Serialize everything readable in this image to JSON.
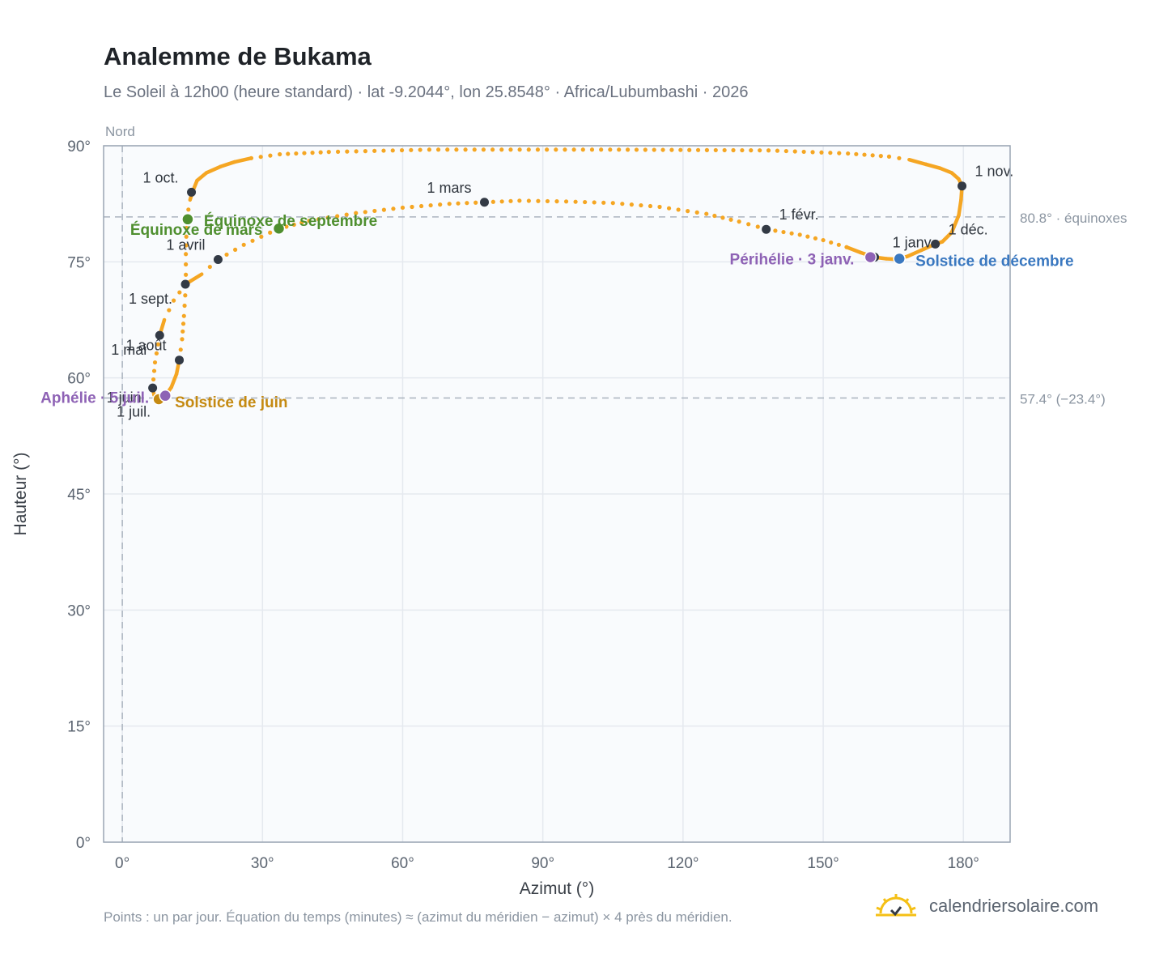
{
  "header": {
    "title": "Analemme de Bukama",
    "subtitle": "Le Soleil à 12h00 (heure standard) · lat -9.2044°, lon 25.8548° · Africa/Lubumbashi · 2026"
  },
  "footer": {
    "note": "Points : un par jour. Équation du temps (minutes) ≈ (azimut du méridien − azimut) × 4 près du méridien.",
    "brand": "calendriersolaire.com"
  },
  "colors": {
    "curve": "#f5a623",
    "month_marker": "#333a45",
    "equinox": "#4f8f2f",
    "june_solstice": "#c58a12",
    "december_solstice": "#3a78c0",
    "perihelion": "#8e62b5",
    "grid": "#e5e9ef",
    "frame": "#9aa5b4",
    "plot_bg": "#f9fbfd",
    "reference_line": "#aab3be"
  },
  "chart_data": {
    "type": "scatter",
    "title": "Analemme de Bukama",
    "xlabel": "Azimut (°)",
    "ylabel": "Hauteur (°)",
    "xlim": [
      -4,
      190
    ],
    "ylim": [
      0,
      90
    ],
    "x_ticks": [
      "0°",
      "30°",
      "60°",
      "90°",
      "120°",
      "150°",
      "180°"
    ],
    "x_tick_values": [
      0,
      30,
      60,
      90,
      120,
      150,
      180
    ],
    "y_ticks": [
      "0°",
      "15°",
      "30°",
      "45°",
      "60°",
      "75°",
      "90°"
    ],
    "y_tick_values": [
      0,
      15,
      30,
      45,
      60,
      75,
      90
    ],
    "grid": true,
    "north_label": "Nord",
    "north_azimuth": 0,
    "reference_lines": [
      {
        "altitude": 80.8,
        "label": "80.8° · équinoxes"
      },
      {
        "altitude": 57.4,
        "label": "57.4° (−23.4°)"
      }
    ],
    "curve_points": [
      [
        166.3,
        75.4
      ],
      [
        165.0,
        75.35
      ],
      [
        163.5,
        75.4
      ],
      [
        161.0,
        75.6
      ],
      [
        158.0,
        76.2
      ],
      [
        155.0,
        76.9
      ],
      [
        150.0,
        77.8
      ],
      [
        145.0,
        78.5
      ],
      [
        138.0,
        79.2
      ],
      [
        132.0,
        80.2
      ],
      [
        125.0,
        81.2
      ],
      [
        115.0,
        82.1
      ],
      [
        105.0,
        82.6
      ],
      [
        95.0,
        82.8
      ],
      [
        85.0,
        82.9
      ],
      [
        77.5,
        82.7
      ],
      [
        70.0,
        82.5
      ],
      [
        60.0,
        82.0
      ],
      [
        50.0,
        81.3
      ],
      [
        40.0,
        80.3
      ],
      [
        33.5,
        79.3
      ],
      [
        26.0,
        77.2
      ],
      [
        20.5,
        75.3
      ],
      [
        17.0,
        73.4
      ],
      [
        13.5,
        72.1
      ],
      [
        11.0,
        70.0
      ],
      [
        9.0,
        67.5
      ],
      [
        8.0,
        65.5
      ],
      [
        7.0,
        62.0
      ],
      [
        6.5,
        58.7
      ],
      [
        6.8,
        57.8
      ],
      [
        7.5,
        57.3
      ],
      [
        8.2,
        57.25
      ],
      [
        9.2,
        57.7
      ],
      [
        10.5,
        58.8
      ],
      [
        11.6,
        60.5
      ],
      [
        12.2,
        62.3
      ],
      [
        12.8,
        65.0
      ],
      [
        13.2,
        68.0
      ],
      [
        13.6,
        72.0
      ],
      [
        13.6,
        76.0
      ],
      [
        13.8,
        80.5
      ],
      [
        14.5,
        83.0
      ],
      [
        15.0,
        84.0
      ],
      [
        16.0,
        85.5
      ],
      [
        18.0,
        86.5
      ],
      [
        21.0,
        87.3
      ],
      [
        24.0,
        87.9
      ],
      [
        27.6,
        88.4
      ],
      [
        33.7,
        88.9
      ],
      [
        44.2,
        89.2
      ],
      [
        65.7,
        89.5
      ],
      [
        104.4,
        89.5
      ],
      [
        138.3,
        89.4
      ],
      [
        155.3,
        89.0
      ],
      [
        164.1,
        88.6
      ],
      [
        168.4,
        88.2
      ],
      [
        172.0,
        87.6
      ],
      [
        175.0,
        87.1
      ],
      [
        177.5,
        86.5
      ],
      [
        179.0,
        85.7
      ],
      [
        179.7,
        84.8
      ],
      [
        179.5,
        83.0
      ],
      [
        179.0,
        81.0
      ],
      [
        177.5,
        78.8
      ],
      [
        175.5,
        77.6
      ],
      [
        174.0,
        77.3
      ],
      [
        171.0,
        76.5
      ],
      [
        168.0,
        75.7
      ],
      [
        166.3,
        75.4
      ]
    ],
    "month_markers": [
      {
        "label": "1 janv.",
        "az": 161.0,
        "alt": 75.6
      },
      {
        "label": "1 févr.",
        "az": 137.8,
        "alt": 79.2
      },
      {
        "label": "1 mars",
        "az": 77.5,
        "alt": 82.7
      },
      {
        "label": "1 avril",
        "az": 20.5,
        "alt": 75.3
      },
      {
        "label": "1 mai",
        "az": 8.0,
        "alt": 65.5
      },
      {
        "label": "1 juin",
        "az": 6.5,
        "alt": 58.7
      },
      {
        "label": "1 juil.",
        "az": 7.8,
        "alt": 57.3
      },
      {
        "label": "1 août",
        "az": 12.2,
        "alt": 62.3
      },
      {
        "label": "1 sept.",
        "az": 13.5,
        "alt": 72.1
      },
      {
        "label": "1 oct.",
        "az": 14.8,
        "alt": 84.0
      },
      {
        "label": "1 nov.",
        "az": 179.7,
        "alt": 84.8
      },
      {
        "label": "1 déc.",
        "az": 174.0,
        "alt": 77.3
      }
    ],
    "events": [
      {
        "label": "Équinoxe de mars",
        "az": 33.5,
        "alt": 79.3,
        "kind": "equinox"
      },
      {
        "label": "Équinoxe de septembre",
        "az": 14.0,
        "alt": 80.5,
        "kind": "equinox"
      },
      {
        "label": "Solstice de juin",
        "az": 7.8,
        "alt": 57.25,
        "kind": "june_solstice"
      },
      {
        "label": "Solstice de décembre",
        "az": 166.3,
        "alt": 75.4,
        "kind": "december_solstice"
      },
      {
        "label": "Périhélie · 3 janv.",
        "az": 160.1,
        "alt": 75.6,
        "kind": "perihelion"
      },
      {
        "label": "Aphélie · 5 juil.",
        "az": 9.2,
        "alt": 57.7,
        "kind": "perihelion"
      }
    ]
  }
}
